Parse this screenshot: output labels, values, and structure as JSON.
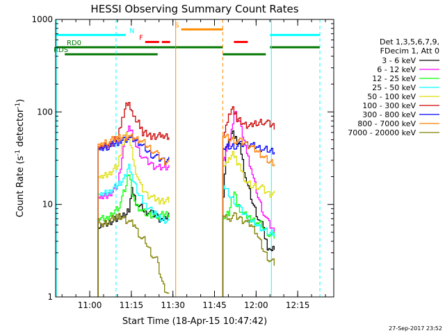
{
  "chart_data": {
    "type": "line",
    "title": "HESSI Observing Summary Count Rates",
    "xlabel": "Start Time (18-Apr-15 10:47:42)",
    "ylabel": "Count Rate (s",
    "ylabel_sup1": "-1",
    "ylabel_mid": " detector",
    "ylabel_sup2": "-1",
    "ylabel_end": ")",
    "yscale": "log",
    "xlim_minutes": [
      47.7,
      148
    ],
    "ylim": [
      1,
      1000
    ],
    "x_tick_minutes": [
      60,
      75,
      90,
      105,
      120,
      135
    ],
    "x_tick_labels": [
      "11:00",
      "11:15",
      "11:30",
      "11:45",
      "12:00",
      "12:15"
    ],
    "y_ticks": [
      1,
      10,
      100,
      1000
    ],
    "y_tick_labels": [
      "1",
      "10",
      "100",
      "1000"
    ],
    "legend_header": [
      "Det 1,3,5,6,7,9,",
      "FDecim 1, Att 0"
    ],
    "timestamp": "27-Sep-2017 23:52",
    "flag_labels": [
      "N",
      "F",
      "S",
      "RD0",
      "RDS"
    ],
    "flags": [
      {
        "label": "N",
        "color": "#00ffff",
        "y": 680,
        "segments": [
          [
            47.7,
            73
          ],
          [
            125,
            143
          ]
        ]
      },
      {
        "label": "F",
        "color": "#ff0000",
        "y": 570,
        "segments": [
          [
            80,
            85
          ],
          [
            86,
            89
          ],
          [
            112,
            117
          ]
        ]
      },
      {
        "label": "S",
        "color": "#ff8c00",
        "y": 780,
        "segments": [
          [
            93,
            108
          ]
        ]
      },
      {
        "label": "RD0",
        "color": "#007700",
        "y": 500,
        "segments": [
          [
            47.7,
            108
          ],
          [
            125,
            143
          ]
        ]
      },
      {
        "label": "RDS",
        "color": "#007700",
        "y": 420,
        "segments": [
          [
            51,
            84.5
          ],
          [
            108,
            123.5
          ]
        ]
      }
    ],
    "vlines": [
      {
        "minute": 48,
        "color": "#00ffff",
        "dash": false
      },
      {
        "minute": 69.5,
        "color": "#00ffff",
        "dash": true
      },
      {
        "minute": 91,
        "color": "#ff8c00",
        "dash": false
      },
      {
        "minute": 108,
        "color": "#ff8c00",
        "dash": true
      },
      {
        "minute": 125.5,
        "color": "#00ffff",
        "dash": false
      },
      {
        "minute": 143,
        "color": "#00ffff",
        "dash": true
      }
    ],
    "segments": [
      [
        63,
        88.5
      ],
      [
        108,
        126.5
      ]
    ],
    "series": [
      {
        "name": "3 - 6 keV",
        "color": "#000000",
        "x": [
          63,
          64,
          67,
          70,
          73,
          74,
          75,
          77,
          79,
          80,
          82,
          84,
          85,
          86,
          87,
          88.5,
          108,
          109,
          110,
          111,
          112,
          113,
          114,
          116,
          118,
          120,
          122,
          123,
          124,
          125,
          126.5
        ],
        "y": [
          5.5,
          6,
          6.5,
          7,
          8,
          9,
          14,
          10,
          9,
          8.5,
          8,
          7.5,
          7,
          6.5,
          7,
          7.5,
          12,
          40,
          50,
          60,
          55,
          48,
          42,
          20,
          12,
          8,
          6,
          4.5,
          3.5,
          3,
          3.5
        ]
      },
      {
        "name": "6 - 12 keV",
        "color": "#ff00ff",
        "x": [
          63,
          64,
          67,
          70,
          72,
          73,
          74,
          75,
          76,
          78,
          80,
          82,
          84,
          86,
          88.5,
          108,
          110,
          111,
          112,
          114,
          115,
          116,
          118,
          120,
          122,
          124,
          126.5
        ],
        "y": [
          12,
          12,
          13,
          16,
          40,
          55,
          65,
          60,
          48,
          36,
          30,
          27,
          25,
          25,
          26,
          30,
          45,
          65,
          100,
          75,
          58,
          40,
          25,
          14,
          9,
          6.5,
          5
        ]
      },
      {
        "name": "12 - 25 keV",
        "color": "#00ff00",
        "x": [
          63,
          66,
          70,
          73,
          74,
          75,
          76,
          78,
          80,
          84,
          88.5,
          108,
          110,
          111,
          112,
          113,
          115,
          118,
          120,
          122,
          124,
          126.5
        ],
        "y": [
          7,
          7,
          9,
          16,
          22,
          14,
          10,
          9,
          8,
          7.5,
          8,
          7,
          8,
          12,
          14,
          10,
          8,
          7,
          6.5,
          6,
          5,
          4.5
        ]
      },
      {
        "name": "25 - 50 keV",
        "color": "#00ffff",
        "x": [
          63,
          64,
          67,
          70,
          72,
          73,
          74,
          75,
          77,
          80,
          83,
          86,
          88.5,
          108,
          110,
          112,
          114,
          116,
          118,
          120,
          122,
          124,
          126.5
        ],
        "y": [
          13,
          13,
          14,
          16,
          18,
          22,
          25,
          20,
          14,
          10,
          8,
          7,
          6.5,
          16,
          13,
          11,
          9,
          7.5,
          6.5,
          6,
          5.5,
          5,
          5
        ]
      },
      {
        "name": "50 - 100 keV",
        "color": "#dddd00",
        "x": [
          63,
          64,
          67,
          70,
          71,
          72,
          73,
          74,
          75,
          76,
          78,
          80,
          82,
          85,
          88.5,
          108,
          109,
          110,
          111,
          112,
          113,
          114,
          116,
          118,
          120,
          122,
          124,
          126.5
        ],
        "y": [
          20,
          20,
          22,
          26,
          36,
          48,
          55,
          50,
          40,
          26,
          16,
          13,
          12,
          11,
          11,
          26,
          28,
          32,
          35,
          34,
          29,
          25,
          18,
          16,
          16,
          15,
          13,
          13
        ]
      },
      {
        "name": "100 - 300 keV",
        "color": "#cc0000",
        "x": [
          63,
          64,
          67,
          70,
          71,
          72,
          73,
          74,
          75,
          76,
          77,
          78,
          79,
          82,
          85,
          86,
          88.5,
          108,
          109,
          110,
          111,
          112,
          113,
          115,
          118,
          120,
          122,
          124,
          126.5
        ],
        "y": [
          42,
          42,
          45,
          52,
          72,
          95,
          115,
          120,
          100,
          90,
          80,
          70,
          60,
          55,
          55,
          55,
          55,
          55,
          70,
          95,
          110,
          100,
          85,
          75,
          70,
          75,
          80,
          75,
          70
        ]
      },
      {
        "name": "300 - 800 keV",
        "color": "#0000ff",
        "x": [
          63,
          64,
          66,
          70,
          72,
          74,
          76,
          78,
          80,
          82,
          84,
          86,
          88.5,
          108,
          110,
          112,
          114,
          116,
          118,
          120,
          122,
          124,
          126.5
        ],
        "y": [
          40,
          40,
          42,
          47,
          50,
          52,
          50,
          46,
          40,
          35,
          32,
          30,
          30,
          40,
          42,
          43,
          44,
          45,
          44,
          42,
          40,
          39,
          38
        ]
      },
      {
        "name": "800 - 7000 keV",
        "color": "#ff8000",
        "x": [
          63,
          64,
          66,
          70,
          72,
          74,
          76,
          78,
          80,
          82,
          84,
          86,
          88.5,
          108,
          110,
          112,
          114,
          116,
          118,
          120,
          122,
          124,
          126.5
        ],
        "y": [
          45,
          45,
          48,
          52,
          53,
          54,
          52,
          50,
          45,
          40,
          35,
          30,
          28,
          55,
          52,
          50,
          48,
          45,
          42,
          38,
          34,
          30,
          28
        ]
      },
      {
        "name": "7000 - 20000 keV",
        "color": "#808000",
        "x": [
          63,
          64,
          66,
          70,
          72,
          74,
          76,
          78,
          80,
          82,
          84,
          86,
          88.5,
          108,
          109,
          110,
          112,
          114,
          116,
          118,
          120,
          122,
          124,
          126.5
        ],
        "y": [
          7,
          6,
          6.5,
          7.5,
          7,
          6.5,
          6,
          4.5,
          4,
          3,
          2.5,
          1.4,
          1.0,
          7.5,
          7.5,
          7,
          7.5,
          7,
          6.5,
          6,
          5,
          3.5,
          2.7,
          2.3
        ]
      }
    ]
  }
}
